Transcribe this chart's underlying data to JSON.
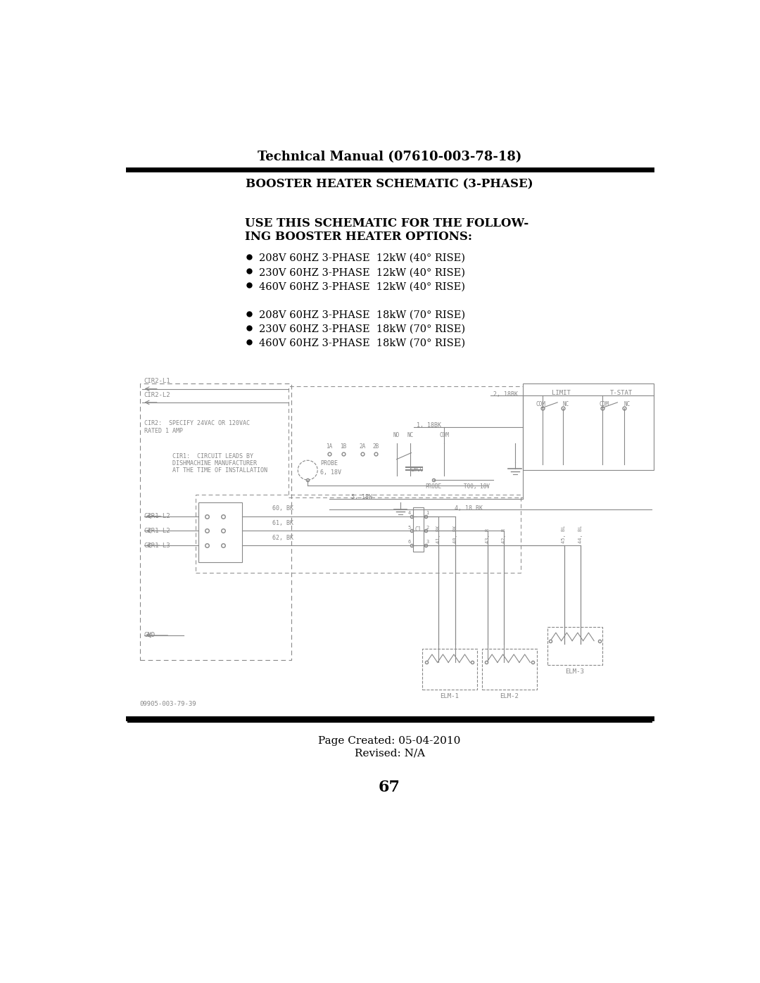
{
  "title_manual": "Technical Manual (07610-003-78-18)",
  "title_schematic": "BOOSTER HEATER SCHEMATIC (3-PHASE)",
  "use_heading_line1": "USE THIS SCHEMATIC FOR THE FOLLOW-",
  "use_heading_line2": "ING BOOSTER HEATER OPTIONS:",
  "bullets_group1": [
    "208V 60HZ 3-PHASE  12kW (40° RISE)",
    "230V 60HZ 3-PHASE  12kW (40° RISE)",
    "460V 60HZ 3-PHASE  12kW (40° RISE)"
  ],
  "bullets_group2": [
    "208V 60HZ 3-PHASE  18kW (70° RISE)",
    "230V 60HZ 3-PHASE  18kW (70° RISE)",
    "460V 60HZ 3-PHASE  18kW (70° RISE)"
  ],
  "page_created": "Page Created: 05-04-2010",
  "page_revised": "Revised: N/A",
  "page_number": "67",
  "diagram_note": "09905-003-79-39",
  "bg_color": "#ffffff",
  "text_color": "#000000",
  "dc": "#888888"
}
